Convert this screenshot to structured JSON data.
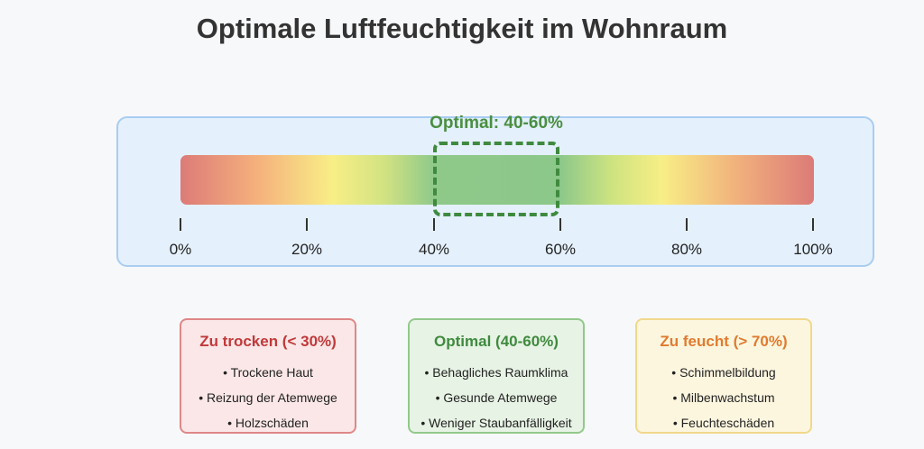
{
  "title": "Optimale Luftfeuchtigkeit im Wohnraum",
  "scale": {
    "optimal_label": "Optimal: 40-60%",
    "optimal_range": [
      40,
      60
    ],
    "ticks": [
      "0%",
      "20%",
      "40%",
      "60%",
      "80%",
      "100%"
    ]
  },
  "cards": [
    {
      "title": "Zu trocken (< 30%)",
      "items": [
        "• Trockene Haut",
        "• Reizung der Atemwege",
        "• Holzschäden"
      ]
    },
    {
      "title": "Optimal (40-60%)",
      "items": [
        "• Behagliches Raumklima",
        "• Gesunde Atemwege",
        "• Weniger Staubanfälligkeit"
      ]
    },
    {
      "title": "Zu feucht (> 70%)",
      "items": [
        "• Schimmelbildung",
        "• Milbenwachstum",
        "• Feuchteschäden"
      ]
    }
  ],
  "colors": {
    "dry": "#c0393b",
    "optimal": "#3f8a3f",
    "wet": "#e07b2f"
  }
}
